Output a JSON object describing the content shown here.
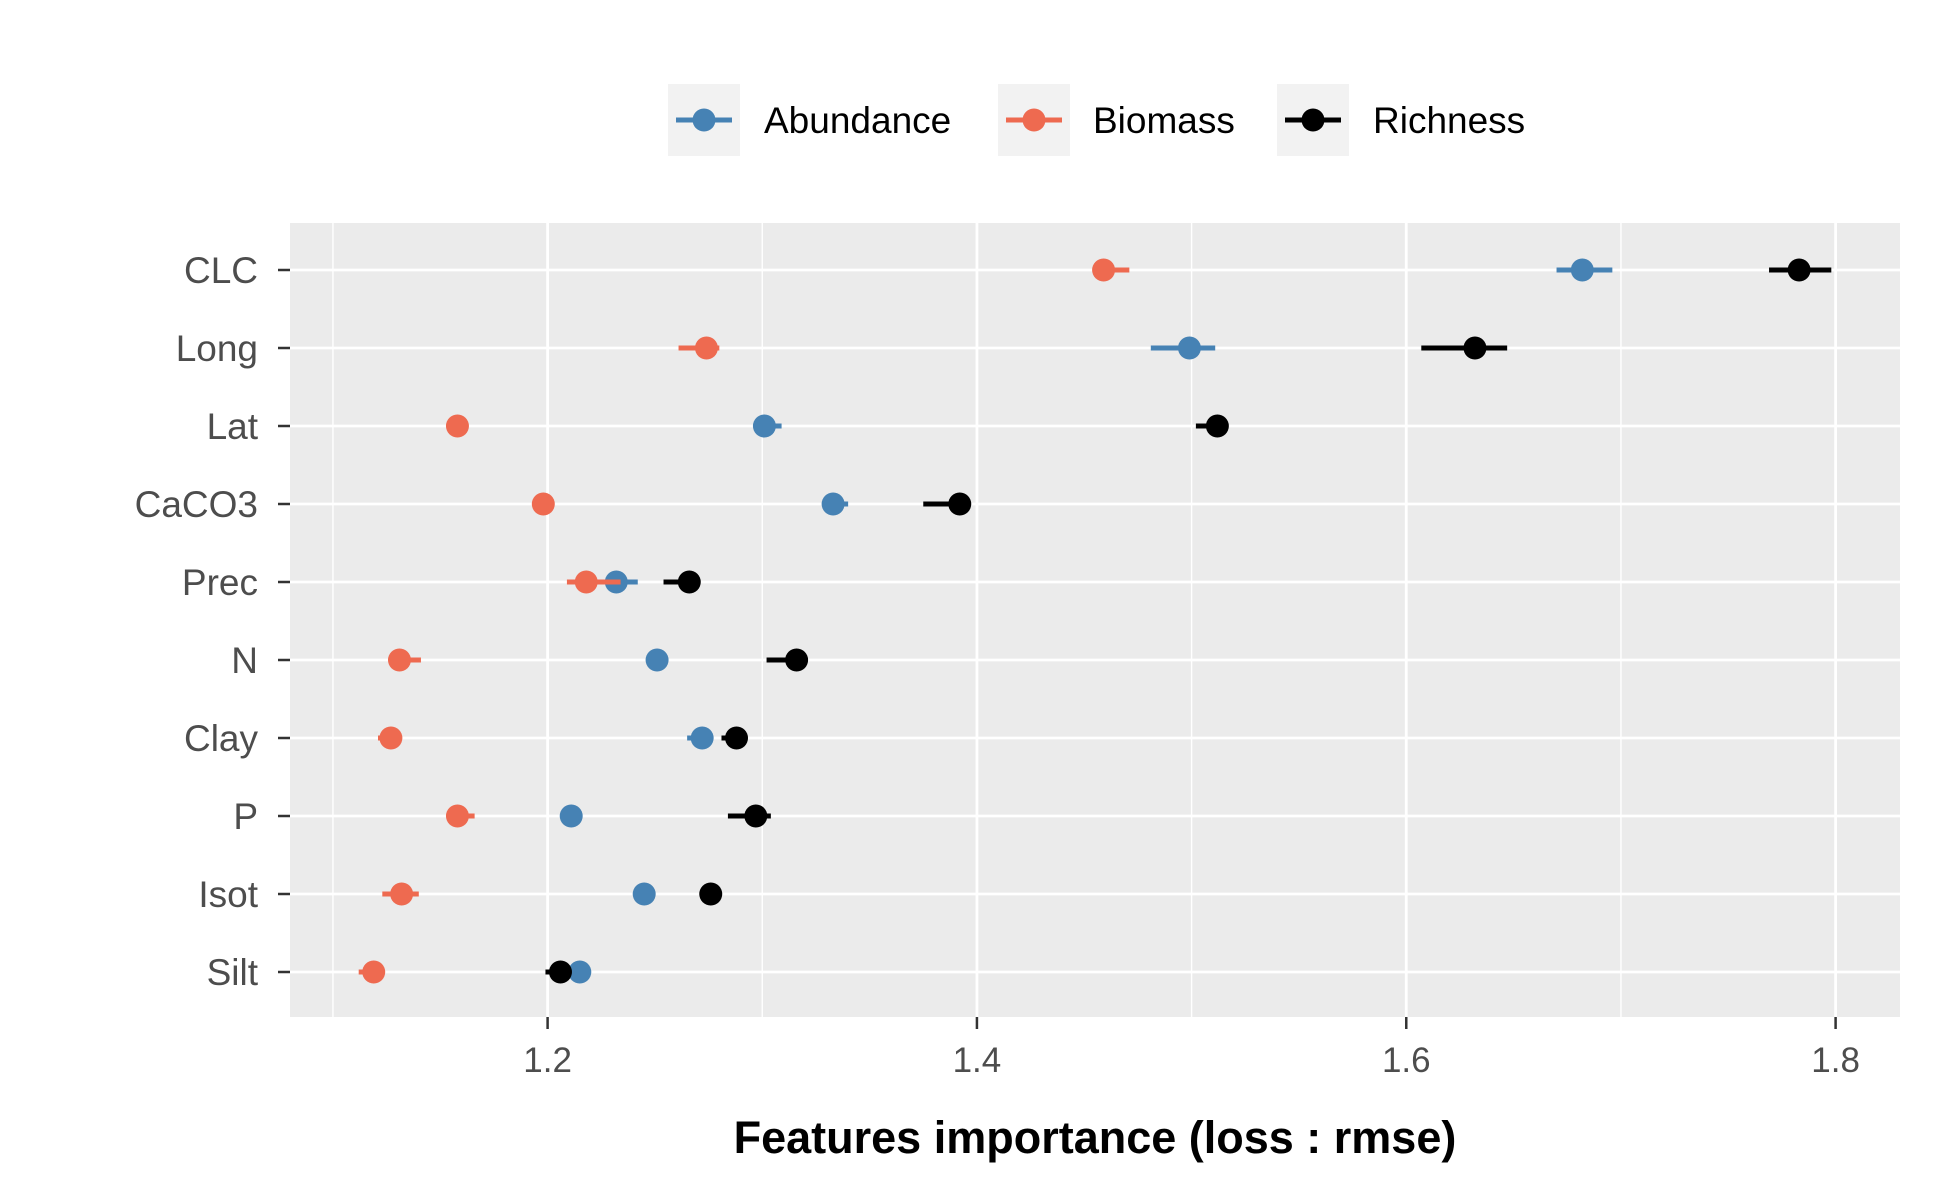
{
  "chart_data": {
    "type": "scatter",
    "title": "",
    "xlabel": "Features importance (loss : rmse)",
    "ylabel": "",
    "xlim": [
      1.08,
      1.83
    ],
    "xticks": [
      1.2,
      1.4,
      1.6,
      1.8
    ],
    "xtick_labels": [
      "1.2",
      "1.4",
      "1.6",
      "1.8"
    ],
    "categories": [
      "CLC",
      "Long",
      "Lat",
      "CaCO3",
      "Prec",
      "N",
      "Clay",
      "P",
      "Isot",
      "Silt"
    ],
    "grid": true,
    "legend_position": "top",
    "series": [
      {
        "name": "Abundance",
        "color": "#4682b4",
        "values": [
          1.682,
          1.499,
          1.301,
          1.333,
          1.232,
          1.251,
          1.272,
          1.211,
          1.245,
          1.215
        ],
        "err_low": [
          1.67,
          1.481,
          1.298,
          1.33,
          1.225,
          1.251,
          1.265,
          1.211,
          1.245,
          1.215
        ],
        "err_high": [
          1.696,
          1.511,
          1.309,
          1.34,
          1.242,
          1.251,
          1.275,
          1.211,
          1.245,
          1.215
        ]
      },
      {
        "name": "Biomass",
        "color": "#ee6a50",
        "values": [
          1.459,
          1.274,
          1.158,
          1.198,
          1.218,
          1.131,
          1.127,
          1.158,
          1.132,
          1.119
        ],
        "err_low": [
          1.459,
          1.261,
          1.158,
          1.195,
          1.209,
          1.129,
          1.121,
          1.153,
          1.123,
          1.112
        ],
        "err_high": [
          1.471,
          1.28,
          1.158,
          1.2,
          1.234,
          1.141,
          1.127,
          1.166,
          1.14,
          1.121
        ]
      },
      {
        "name": "Richness",
        "color": "#000000",
        "values": [
          1.783,
          1.632,
          1.512,
          1.392,
          1.266,
          1.316,
          1.288,
          1.297,
          1.276,
          1.206
        ],
        "err_low": [
          1.769,
          1.607,
          1.502,
          1.375,
          1.254,
          1.302,
          1.281,
          1.284,
          1.276,
          1.199
        ],
        "err_high": [
          1.798,
          1.647,
          1.512,
          1.392,
          1.27,
          1.316,
          1.288,
          1.304,
          1.278,
          1.21
        ]
      }
    ]
  }
}
